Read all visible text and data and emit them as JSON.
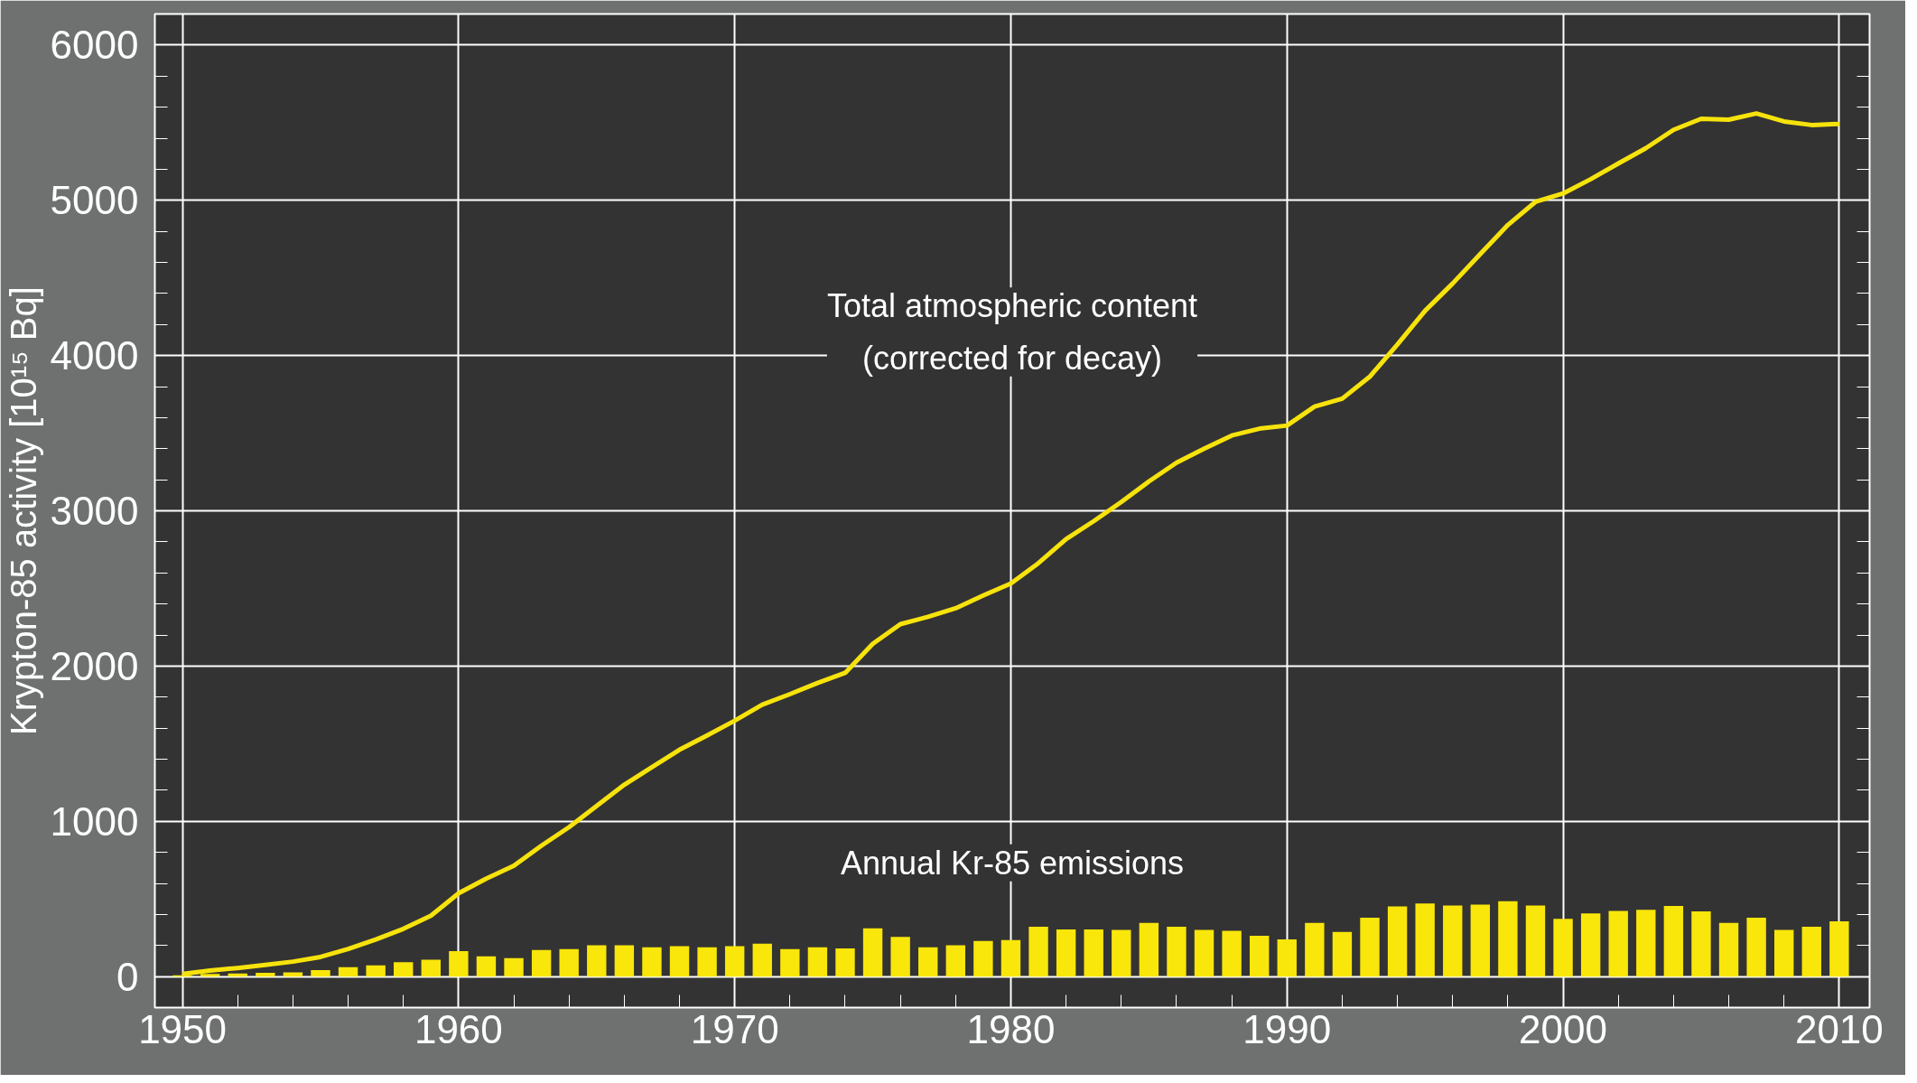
{
  "chart_data": {
    "type": "bar",
    "ylabel": "Krypton-85 activity [10¹⁵ Bq]",
    "x": [
      1950,
      1951,
      1952,
      1953,
      1954,
      1955,
      1956,
      1957,
      1958,
      1959,
      1960,
      1961,
      1962,
      1963,
      1964,
      1965,
      1966,
      1967,
      1968,
      1969,
      1970,
      1971,
      1972,
      1973,
      1974,
      1975,
      1976,
      1977,
      1978,
      1979,
      1980,
      1981,
      1982,
      1983,
      1984,
      1985,
      1986,
      1987,
      1988,
      1989,
      1990,
      1991,
      1992,
      1993,
      1994,
      1995,
      1996,
      1997,
      1998,
      1999,
      2000,
      2001,
      2002,
      2003,
      2004,
      2005,
      2006,
      2007,
      2008,
      2009,
      2010
    ],
    "series": [
      {
        "name": "Total atmospheric content\n(corrected for decay)",
        "type": "line",
        "color": "#f7e30c",
        "values": [
          17,
          38,
          55,
          75,
          96,
          126,
          177,
          239,
          307,
          392,
          536,
          631,
          713,
          843,
          962,
          1099,
          1235,
          1348,
          1461,
          1553,
          1648,
          1751,
          1819,
          1891,
          1956,
          2143,
          2270,
          2317,
          2372,
          2454,
          2532,
          2663,
          2817,
          2933,
          3057,
          3189,
          3310,
          3400,
          3485,
          3529,
          3549,
          3671,
          3722,
          3864,
          4071,
          4288,
          4464,
          4654,
          4841,
          4990,
          5044,
          5136,
          5237,
          5336,
          5454,
          5525,
          5519,
          5559,
          5508,
          5485,
          5492
        ]
      },
      {
        "name": "Annual Kr-85 emissions",
        "color": "#f9e60a",
        "values": [
          8,
          17,
          20,
          24,
          27,
          41,
          61,
          72,
          92,
          109,
          164,
          130,
          119,
          171,
          177,
          201,
          201,
          188,
          195,
          188,
          195,
          212,
          177,
          188,
          181,
          311,
          256,
          188,
          201,
          229,
          235,
          321,
          304,
          304,
          300,
          345,
          321,
          300,
          294,
          263,
          239,
          345,
          287,
          379,
          451,
          471,
          457,
          464,
          485,
          457,
          372,
          406,
          423,
          430,
          454,
          420,
          345,
          379,
          300,
          321,
          355
        ]
      }
    ],
    "xlim": [
      1949,
      2011.1
    ],
    "ylim": [
      -200,
      6200
    ],
    "xticks": [
      1950,
      1960,
      1970,
      1980,
      1990,
      2000,
      2010
    ],
    "yticks": [
      0,
      1000,
      2000,
      3000,
      4000,
      5000,
      6000
    ],
    "grid": true
  }
}
